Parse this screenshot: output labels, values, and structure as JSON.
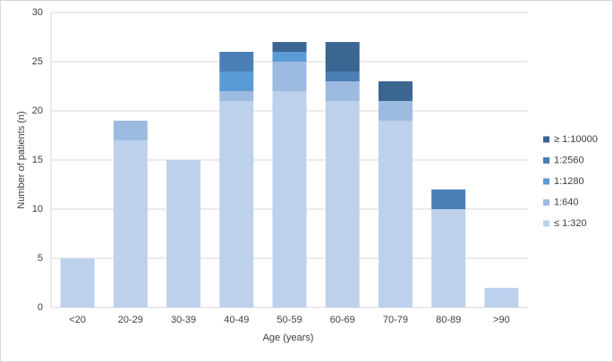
{
  "chart_data": {
    "type": "stacked_bar",
    "x_label": "Age (years)",
    "y_label": "Number of patients (n)",
    "categories": [
      "<20",
      "20-29",
      "30-39",
      "40-49",
      "50-59",
      "60-69",
      "70-79",
      "80-89",
      ">90"
    ],
    "series": [
      {
        "name": "≤ 1:320",
        "color": "#bdd1ec",
        "values": [
          5,
          17,
          15,
          21,
          22,
          21,
          19,
          10,
          2
        ]
      },
      {
        "name": "1:640",
        "color": "#9dbbe0",
        "values": [
          0,
          2,
          0,
          1,
          3,
          2,
          2,
          0,
          0
        ]
      },
      {
        "name": "1:1280",
        "color": "#5b9bd5",
        "values": [
          0,
          0,
          0,
          2,
          1,
          0,
          0,
          0,
          0
        ]
      },
      {
        "name": "1:2560",
        "color": "#4a7fb5",
        "values": [
          0,
          0,
          0,
          2,
          0,
          1,
          0,
          2,
          0
        ]
      },
      {
        "name": "≥ 1:10000",
        "color": "#3b6692",
        "values": [
          0,
          0,
          0,
          0,
          1,
          3,
          2,
          0,
          0
        ]
      }
    ],
    "ylim": [
      0,
      30
    ],
    "yticks": [
      0,
      5,
      10,
      15,
      20,
      25,
      30
    ],
    "grid": true,
    "legend": "right"
  }
}
